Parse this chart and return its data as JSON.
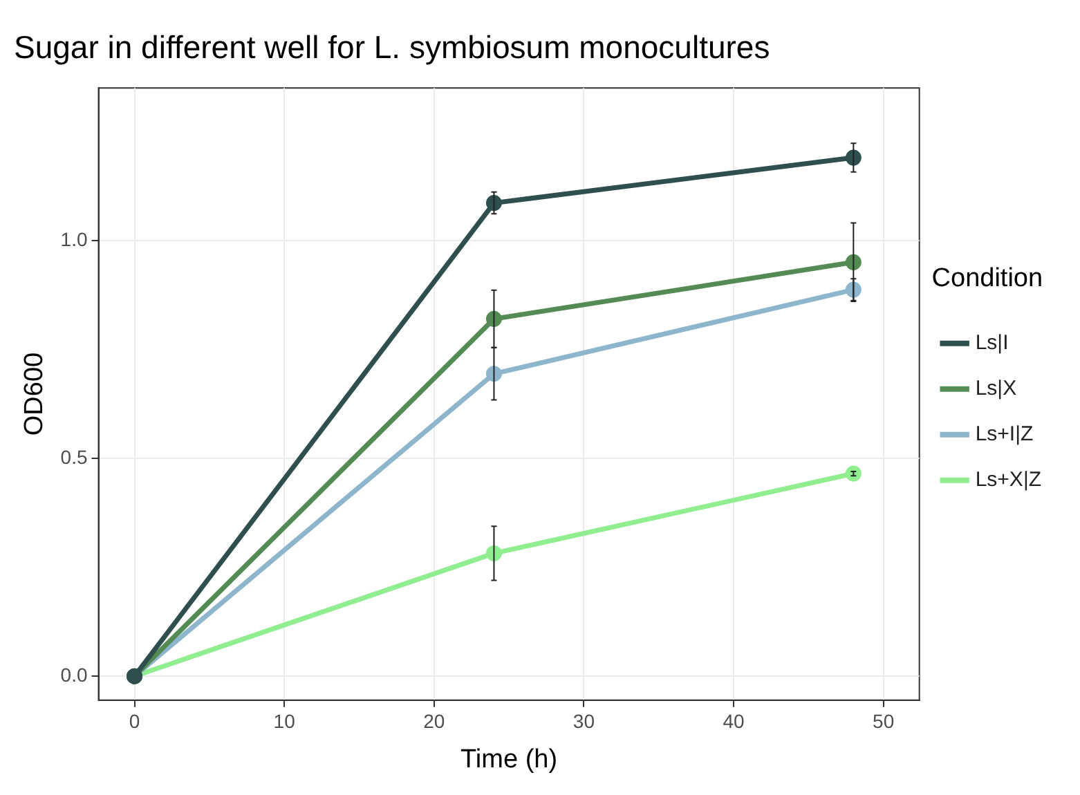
{
  "chart_data": {
    "type": "line",
    "title": "Sugar in different well for L. symbiosum monocultures",
    "xlabel": "Time (h)",
    "ylabel": "OD600",
    "legend_title": "Condition",
    "legend": "right",
    "grid": true,
    "marker": "circle",
    "line_style": "solid",
    "x": [
      0,
      24,
      48
    ],
    "xlim": [
      -2.4,
      52.4
    ],
    "xticks": [
      0,
      10,
      20,
      30,
      40,
      50
    ],
    "ylim": [
      -0.055,
      1.35
    ],
    "yticks": [
      {
        "value": 0,
        "label": "0.0"
      },
      {
        "value": 0.5,
        "label": "0.5"
      },
      {
        "value": 1,
        "label": "1.0"
      }
    ],
    "series": [
      {
        "name": "Ls|I",
        "color": "#2f4f4f",
        "values": [
          0,
          1.086,
          1.19
        ],
        "errors": [
          null,
          0.025,
          0.033
        ]
      },
      {
        "name": "Ls|X",
        "color": "#548b54",
        "values": [
          0,
          0.82,
          0.95
        ],
        "errors": [
          null,
          0.066,
          0.09
        ]
      },
      {
        "name": "Ls+I|Z",
        "color": "#8db6cd",
        "values": [
          0,
          0.694,
          0.887
        ],
        "errors": [
          null,
          0.06,
          0.025
        ]
      },
      {
        "name": "Ls+X|Z",
        "color": "#90ee90",
        "values": [
          0,
          0.282,
          0.465
        ],
        "errors": [
          null,
          0.062,
          0.005
        ]
      }
    ]
  }
}
